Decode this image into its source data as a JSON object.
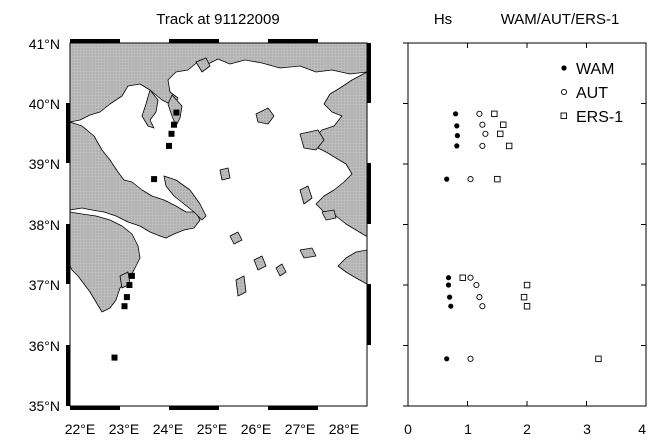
{
  "chart_data": [
    {
      "type": "map",
      "title": "Track at 91122009",
      "x_ticks": [
        "22°E",
        "23°E",
        "24°E",
        "25°E",
        "26°E",
        "27°E",
        "28°E"
      ],
      "y_ticks": [
        "35°N",
        "36°N",
        "37°N",
        "38°N",
        "39°N",
        "40°N",
        "41°N"
      ],
      "xlim": [
        22,
        28
      ],
      "ylim": [
        35,
        41
      ],
      "land_color": "#bdbdbd",
      "track_points": [
        {
          "lon": 24.15,
          "lat": 39.85
        },
        {
          "lon": 24.1,
          "lat": 39.65
        },
        {
          "lon": 24.05,
          "lat": 39.5
        },
        {
          "lon": 24.0,
          "lat": 39.3
        },
        {
          "lon": 23.7,
          "lat": 38.75
        },
        {
          "lon": 23.25,
          "lat": 37.15
        },
        {
          "lon": 23.2,
          "lat": 37.0
        },
        {
          "lon": 23.15,
          "lat": 36.8
        },
        {
          "lon": 23.1,
          "lat": 36.65
        },
        {
          "lon": 22.9,
          "lat": 35.8
        }
      ]
    },
    {
      "type": "scatter",
      "title_left": "Hs",
      "title_right": "WAM/AUT/ERS-1",
      "x_ticks": [
        "0",
        "1",
        "2",
        "3",
        "4"
      ],
      "xlim": [
        0,
        4
      ],
      "ylim": [
        35,
        41
      ],
      "legend_position": "top-right",
      "series": [
        {
          "name": "WAM",
          "marker": "filled-circle",
          "points": [
            [
              0.8,
              39.83
            ],
            [
              0.82,
              39.63
            ],
            [
              0.83,
              39.47
            ],
            [
              0.82,
              39.3
            ],
            [
              0.65,
              38.75
            ],
            [
              0.68,
              37.12
            ],
            [
              0.68,
              37.0
            ],
            [
              0.7,
              36.8
            ],
            [
              0.72,
              36.65
            ],
            [
              0.65,
              35.78
            ]
          ]
        },
        {
          "name": "AUT",
          "marker": "open-circle",
          "points": [
            [
              1.2,
              39.83
            ],
            [
              1.25,
              39.65
            ],
            [
              1.3,
              39.5
            ],
            [
              1.25,
              39.3
            ],
            [
              1.05,
              38.75
            ],
            [
              1.05,
              37.12
            ],
            [
              1.15,
              37.0
            ],
            [
              1.2,
              36.8
            ],
            [
              1.25,
              36.65
            ],
            [
              1.05,
              35.78
            ]
          ]
        },
        {
          "name": "ERS-1",
          "marker": "open-square",
          "points": [
            [
              1.45,
              39.83
            ],
            [
              1.6,
              39.65
            ],
            [
              1.55,
              39.5
            ],
            [
              1.7,
              39.3
            ],
            [
              1.5,
              38.75
            ],
            [
              0.92,
              37.12
            ],
            [
              2.0,
              37.0
            ],
            [
              1.95,
              36.8
            ],
            [
              2.0,
              36.65
            ],
            [
              3.2,
              35.78
            ]
          ]
        }
      ]
    }
  ]
}
